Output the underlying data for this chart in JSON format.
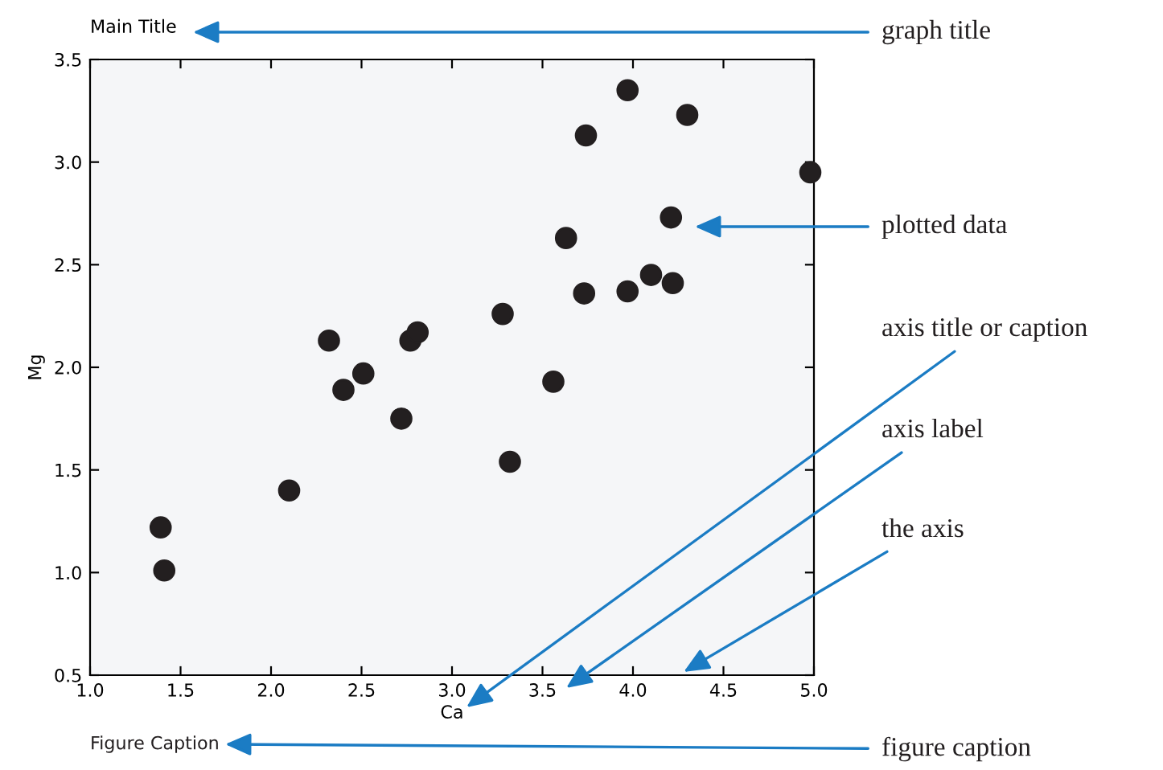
{
  "chart_data": {
    "type": "scatter",
    "title": "Main Title",
    "xlabel": "Ca",
    "ylabel": "Mg",
    "x": [
      1.39,
      1.41,
      2.1,
      2.32,
      2.4,
      2.51,
      2.72,
      2.77,
      2.81,
      3.28,
      3.32,
      3.56,
      3.63,
      3.73,
      3.74,
      3.97,
      3.97,
      4.1,
      4.22,
      4.21,
      4.3,
      4.98
    ],
    "values": [
      1.22,
      1.01,
      1.4,
      2.13,
      1.89,
      1.97,
      1.75,
      2.13,
      2.17,
      2.26,
      1.54,
      1.93,
      2.63,
      2.36,
      3.13,
      2.37,
      3.35,
      2.45,
      2.41,
      2.73,
      3.23,
      2.95
    ],
    "color": "#231f20",
    "marker": "circle",
    "xlim": [
      1.0,
      5.0
    ],
    "xticks": [
      {
        "value": 1.0,
        "label": "1.0"
      },
      {
        "value": 1.5,
        "label": "1.5"
      },
      {
        "value": 2.0,
        "label": "2.0"
      },
      {
        "value": 2.5,
        "label": "2.5"
      },
      {
        "value": 3.0,
        "label": "3.0"
      },
      {
        "value": 3.5,
        "label": "3.5"
      },
      {
        "value": 4.0,
        "label": "4.0"
      },
      {
        "value": 4.5,
        "label": "4.5"
      },
      {
        "value": 5.0,
        "label": "5.0"
      }
    ],
    "ylim": [
      0.5,
      3.5
    ],
    "yticks": [
      {
        "value": 0.5,
        "label": "0.5"
      },
      {
        "value": 1.0,
        "label": "1.0"
      },
      {
        "value": 1.5,
        "label": "1.5"
      },
      {
        "value": 2.0,
        "label": "2.0"
      },
      {
        "value": 2.5,
        "label": "2.5"
      },
      {
        "value": 3.0,
        "label": "3.0"
      },
      {
        "value": 3.5,
        "label": "3.5"
      }
    ],
    "grid": false,
    "legend": false,
    "annotations": [
      "graph title",
      "plotted data",
      "axis title or caption",
      "axis label",
      "the axis",
      "Figure Caption",
      "figure caption"
    ]
  }
}
